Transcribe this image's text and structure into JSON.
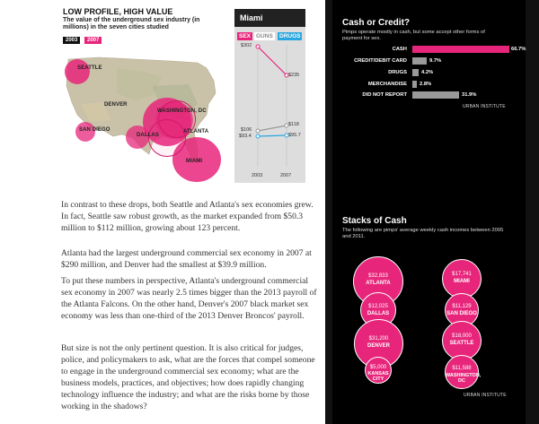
{
  "graphic": {
    "title": "LOW PROFILE, HIGH VALUE",
    "subtitle": "The value of the underground sex industry (in millions) in the seven cities studied",
    "years": [
      "2003",
      "2007"
    ],
    "cities": [
      "SEATTLE",
      "DENVER",
      "WASHINGTON, DC",
      "SAN DIEGO",
      "DALLAS",
      "ATLANTA",
      "MIAMI"
    ]
  },
  "miami_panel": {
    "title": "Miami",
    "tabs": [
      "SEX",
      "GUNS",
      "DRUGS"
    ],
    "values": {
      "sex_2003": "$302",
      "sex_2007": "$235",
      "guns_2003": "$106",
      "guns_2007": "$118",
      "drugs_2003": "$93.4",
      "drugs_2007": "$95.7"
    },
    "x_labels": [
      "2003",
      "2007"
    ]
  },
  "article": {
    "paragraphs": [
      "In contrast to these drops, both Seattle and Atlanta's sex economies grew. In fact, Seattle saw robust growth, as the market expanded from $50.3 million to $112 million, growing about 123 percent.",
      "Atlanta had the largest underground commercial sex economy in 2007 at $290 million, and Denver had the smallest at $39.9 million.",
      "To put these numbers in perspective, Atlanta's underground commercial sex economy in 2007 was nearly 2.5 times bigger than the 2013 payroll of the Atlanta Falcons. On the other hand, Denver's 2007 black market sex economy was less than one-third of the 2013 Denver Broncos' payroll.",
      "But size is not the only pertinent question. It is also critical for judges, police, and policymakers to ask, what are the forces that compel someone to engage in the underground commercial sex economy; what are the business models, practices, and objectives; how does rapidly changing technology influence the industry; and what are the risks borne by those working in the shadows?"
    ]
  },
  "cash_or_credit": {
    "title": "Cash or Credit?",
    "subtitle": "Pimps operate mostly in cash, but some accept other forms of payment for sex.",
    "bars": [
      {
        "label": "CASH",
        "value": "66.7%"
      },
      {
        "label": "CREDIT/DEBIT CARD",
        "value": "9.7%"
      },
      {
        "label": "DRUGS",
        "value": "4.2%"
      },
      {
        "label": "MERCHANDISE",
        "value": "2.8%"
      },
      {
        "label": "DID NOT REPORT",
        "value": "31.9%"
      }
    ],
    "source": "URBAN INSTITUTE"
  },
  "stacks_of_cash": {
    "title": "Stacks of Cash",
    "subtitle": "The following are pimps' average weekly cash incomes between 2005 and 2011.",
    "circles": [
      {
        "amount": "$32,833",
        "city": "ATLANTA"
      },
      {
        "amount": "$12,025",
        "city": "DALLAS"
      },
      {
        "amount": "$31,200",
        "city": "DENVER"
      },
      {
        "amount": "$5,000",
        "city": "KANSAS CITY"
      },
      {
        "amount": "$17,741",
        "city": "MIAMI"
      },
      {
        "amount": "$11,129",
        "city": "SAN DIEGO"
      },
      {
        "amount": "$18,000",
        "city": "SEATTLE"
      },
      {
        "amount": "$11,588",
        "city": "WASHINGTON, DC"
      }
    ],
    "source": "URBAN INSTITUTE"
  },
  "colors": {
    "accent": "#e7267b",
    "guns": "#999999",
    "drugs": "#2aa6e0",
    "dark": "#000000"
  }
}
